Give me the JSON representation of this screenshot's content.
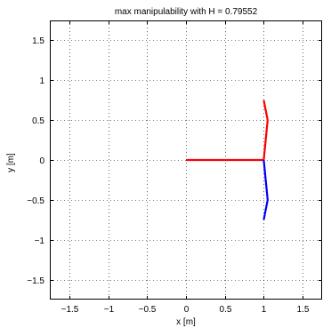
{
  "chart_data": {
    "type": "line",
    "title": "max manipulability with H = 0.79552",
    "xlabel": "x [m]",
    "ylabel": "y [m]",
    "xlim": [
      -1.75,
      1.75
    ],
    "ylim": [
      -1.75,
      1.75
    ],
    "xticks": [
      -1.5,
      -1,
      -0.5,
      0,
      0.5,
      1,
      1.5
    ],
    "xtick_labels": [
      "−1.5",
      "−1",
      "−0.5",
      "0",
      "0.5",
      "1",
      "1.5"
    ],
    "yticks": [
      -1.5,
      -1,
      -0.5,
      0,
      0.5,
      1,
      1.5
    ],
    "ytick_labels": [
      "−1.5",
      "−1",
      "−0.5",
      "0",
      "0.5",
      "1",
      "1.5"
    ],
    "grid": true,
    "grid_style": "dotted",
    "series": [
      {
        "color": "#ff0000",
        "x": [
          0,
          1.0,
          1.05,
          1.0
        ],
        "y": [
          0,
          0,
          0.5,
          0.75
        ]
      },
      {
        "color": "#0000ff",
        "x": [
          1.0,
          1.05,
          1.0
        ],
        "y": [
          0,
          -0.5,
          -0.75
        ]
      }
    ]
  }
}
